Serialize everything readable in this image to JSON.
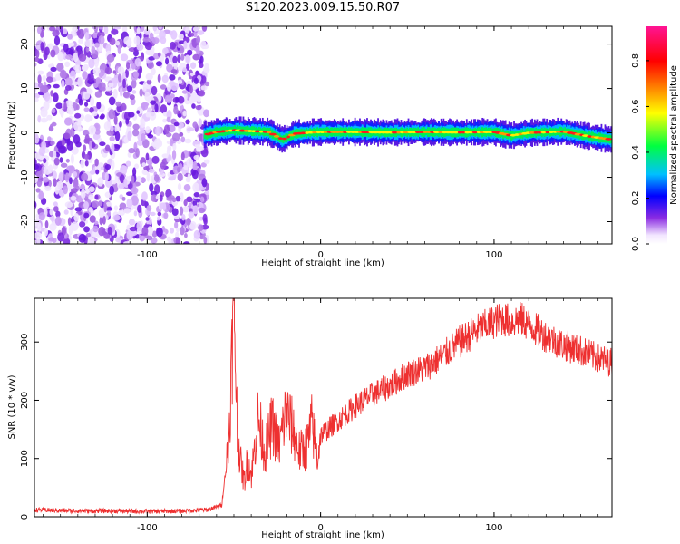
{
  "title": "S120.2023.009.15.50.R07",
  "colors": {
    "snr_line": "#ee3030",
    "blob": "#8a2be2"
  },
  "chart_data": [
    {
      "type": "heatmap",
      "name": "spectrogram",
      "xlabel": "Height of straight line (km)",
      "ylabel": "Frequency (Hz)",
      "xlim": [
        -165,
        168
      ],
      "ylim": [
        -25,
        24
      ],
      "x_ticks": [
        "-100",
        "0",
        "100"
      ],
      "x_tick_values": [
        -100,
        0,
        100
      ],
      "y_ticks": [
        "20",
        "10",
        "0",
        "-10",
        "-20"
      ],
      "y_tick_values": [
        20,
        10,
        0,
        -10,
        -20
      ],
      "noise_region_x": [
        -165,
        -67
      ],
      "signal_track": {
        "x": [
          -67,
          -60,
          -50,
          -40,
          -30,
          -22,
          -15,
          -5,
          0,
          20,
          40,
          60,
          80,
          100,
          110,
          120,
          140,
          155,
          168
        ],
        "y": [
          -0.5,
          0.2,
          0.6,
          0.4,
          0.2,
          -1.5,
          -0.2,
          0.1,
          0.2,
          0.2,
          0.1,
          0.2,
          0.1,
          0.2,
          -0.6,
          0.0,
          0.3,
          -0.8,
          -1.5
        ]
      },
      "colorbar": {
        "label": "Normalized spectral amplitude",
        "range": [
          0,
          0.95
        ],
        "ticks": [
          "0.0",
          "0.2",
          "0.4",
          "0.6",
          "0.8"
        ],
        "tick_values": [
          0.0,
          0.2,
          0.4,
          0.6,
          0.8
        ],
        "colormap": "rainbow"
      }
    },
    {
      "type": "line",
      "name": "snr",
      "xlabel": "Height of straight line (km)",
      "ylabel": "SNR (10 * v/v)",
      "xlim": [
        -165,
        168
      ],
      "ylim": [
        0,
        375
      ],
      "x_ticks": [
        "-100",
        "0",
        "100"
      ],
      "x_tick_values": [
        -100,
        0,
        100
      ],
      "y_ticks": [
        "0",
        "100",
        "200",
        "300"
      ],
      "y_tick_values": [
        0,
        100,
        200,
        300
      ],
      "series": [
        {
          "x": [
            -165,
            -140,
            -120,
            -100,
            -80,
            -65,
            -57,
            -53,
            -50,
            -48,
            -46,
            -44,
            -42,
            -40,
            -36,
            -32,
            -28,
            -24,
            -20,
            -16,
            -12,
            -8,
            -5,
            -2,
            0,
            10,
            20,
            30,
            40,
            50,
            60,
            70,
            80,
            90,
            100,
            105,
            110,
            115,
            120,
            130,
            140,
            150,
            160,
            168
          ],
          "y": [
            12,
            10,
            10,
            9,
            10,
            12,
            20,
            130,
            370,
            150,
            90,
            60,
            100,
            70,
            170,
            110,
            160,
            120,
            180,
            150,
            110,
            120,
            160,
            100,
            140,
            165,
            190,
            210,
            225,
            245,
            255,
            275,
            300,
            320,
            335,
            340,
            335,
            340,
            330,
            310,
            295,
            285,
            272,
            265
          ]
        }
      ]
    }
  ]
}
